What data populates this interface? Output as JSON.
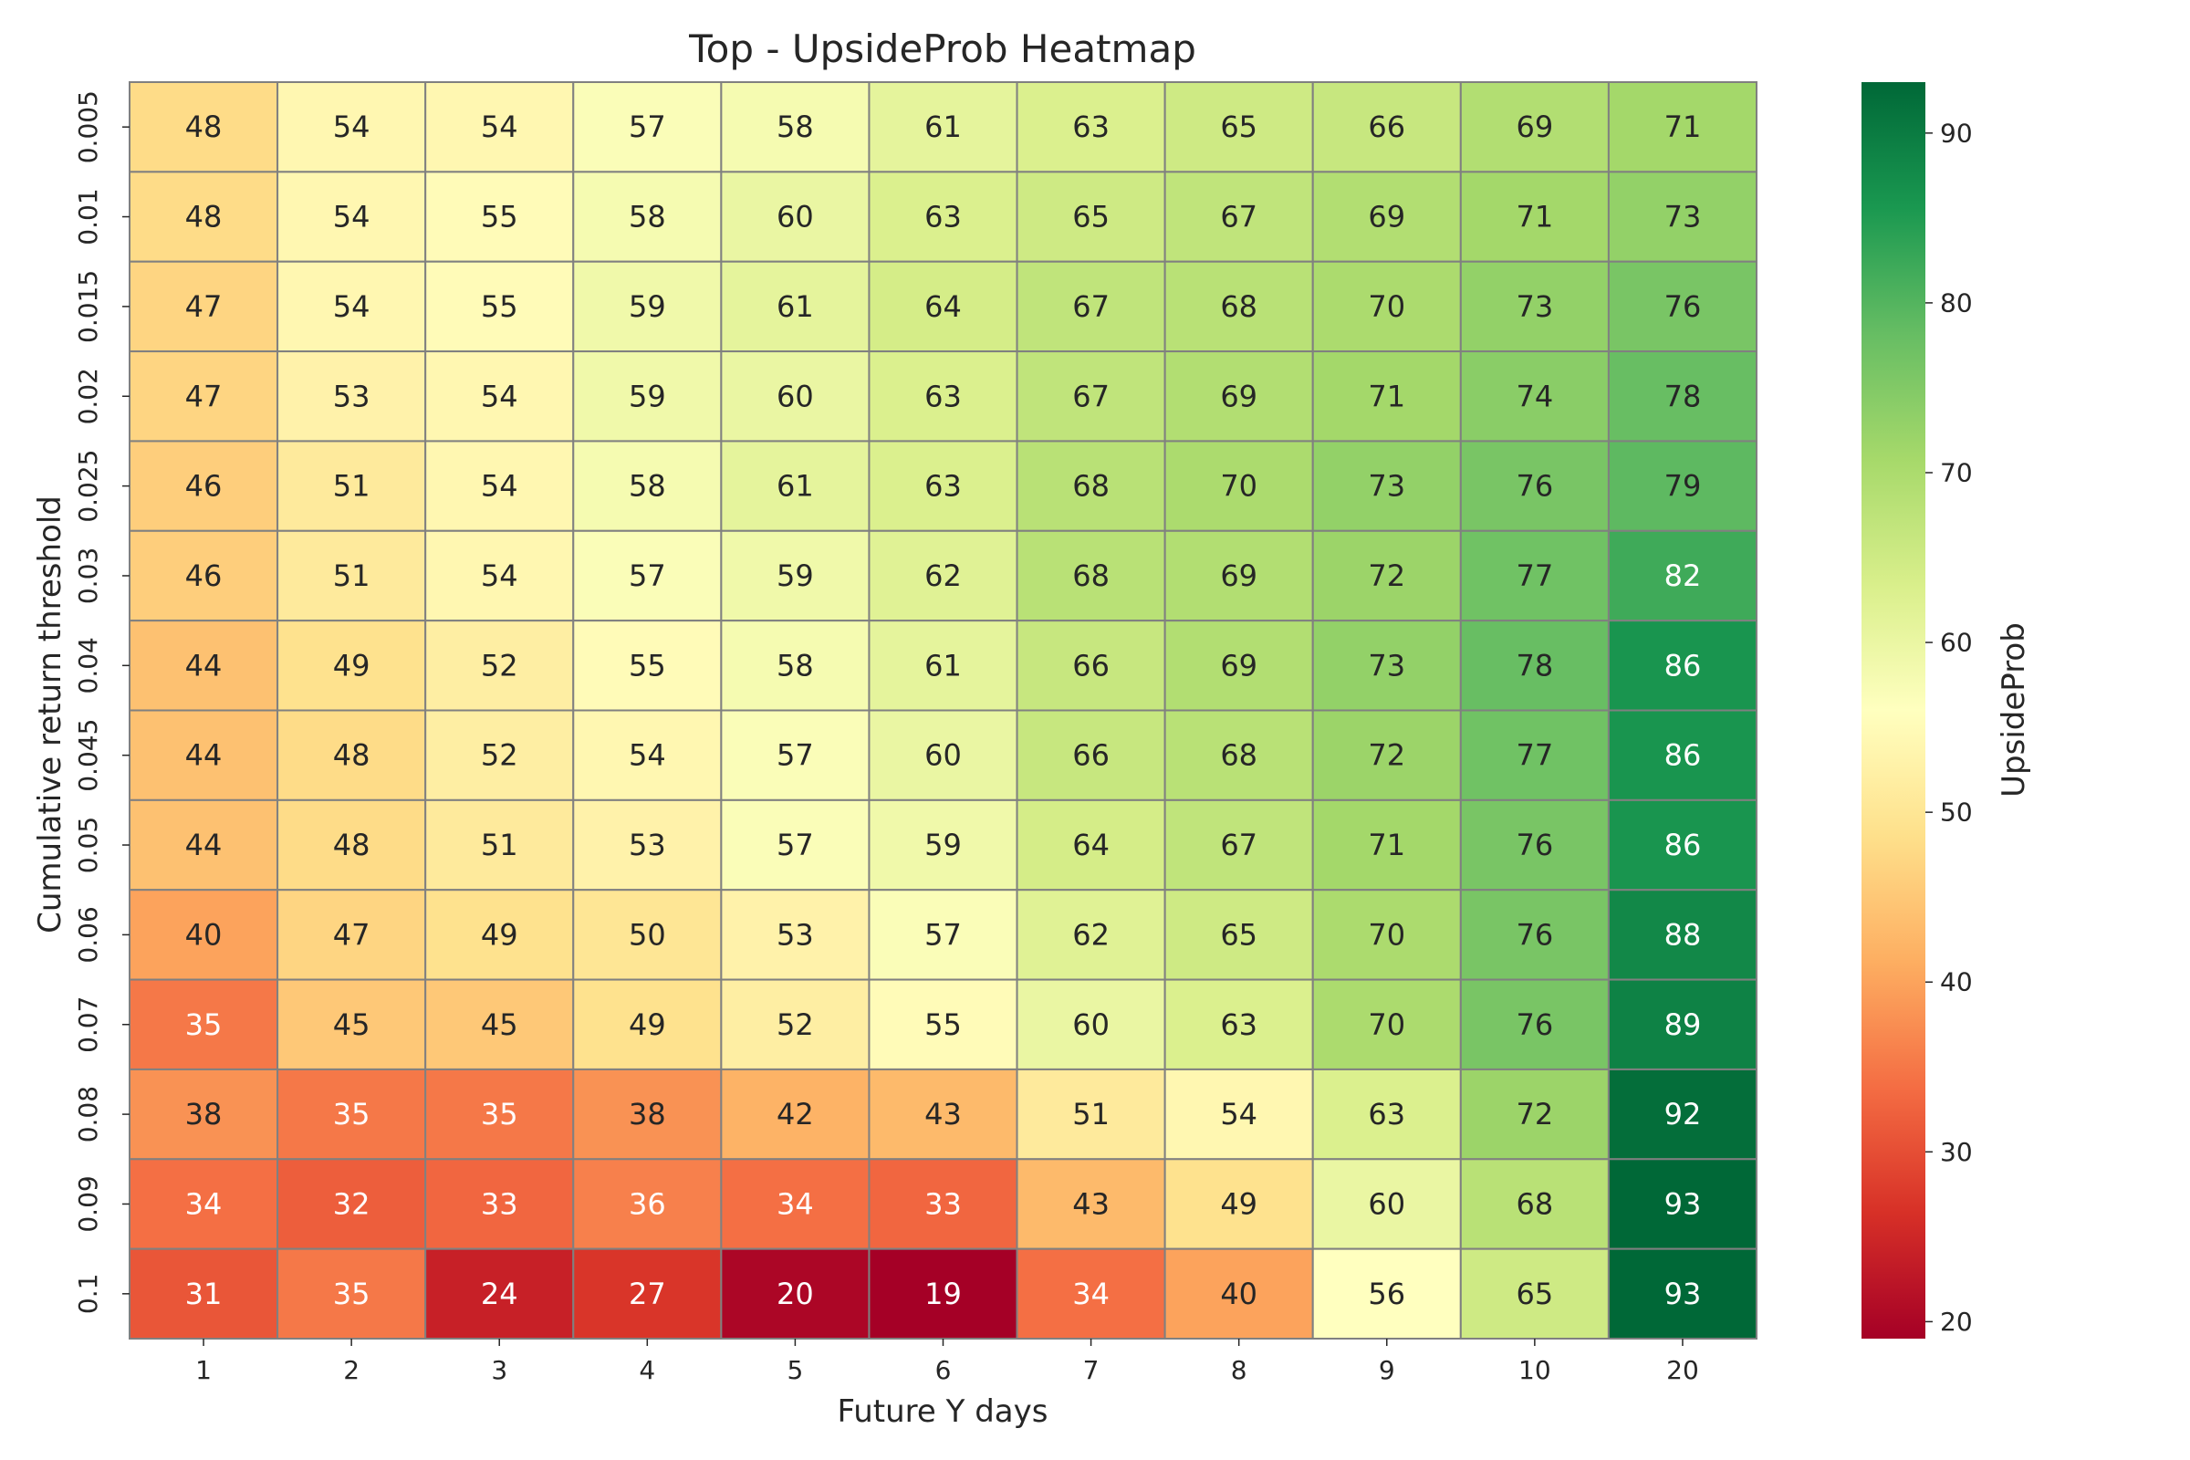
{
  "chart_data": {
    "type": "heatmap",
    "title": "Top - UpsideProb Heatmap",
    "xlabel": "Future Y days",
    "ylabel": "Cumulative return threshold",
    "x_categories": [
      "1",
      "2",
      "3",
      "4",
      "5",
      "6",
      "7",
      "8",
      "9",
      "10",
      "20"
    ],
    "y_categories": [
      "0.005",
      "0.01",
      "0.015",
      "0.02",
      "0.025",
      "0.03",
      "0.04",
      "0.045",
      "0.05",
      "0.06",
      "0.07",
      "0.08",
      "0.09",
      "0.1"
    ],
    "values": [
      [
        48,
        54,
        54,
        57,
        58,
        61,
        63,
        65,
        66,
        69,
        71
      ],
      [
        48,
        54,
        55,
        58,
        60,
        63,
        65,
        67,
        69,
        71,
        73
      ],
      [
        47,
        54,
        55,
        59,
        61,
        64,
        67,
        68,
        70,
        73,
        76
      ],
      [
        47,
        53,
        54,
        59,
        60,
        63,
        67,
        69,
        71,
        74,
        78
      ],
      [
        46,
        51,
        54,
        58,
        61,
        63,
        68,
        70,
        73,
        76,
        79
      ],
      [
        46,
        51,
        54,
        57,
        59,
        62,
        68,
        69,
        72,
        77,
        82
      ],
      [
        44,
        49,
        52,
        55,
        58,
        61,
        66,
        69,
        73,
        78,
        86
      ],
      [
        44,
        48,
        52,
        54,
        57,
        60,
        66,
        68,
        72,
        77,
        86
      ],
      [
        44,
        48,
        51,
        53,
        57,
        59,
        64,
        67,
        71,
        76,
        86
      ],
      [
        40,
        47,
        49,
        50,
        53,
        57,
        62,
        65,
        70,
        76,
        88
      ],
      [
        35,
        45,
        45,
        49,
        52,
        55,
        60,
        63,
        70,
        76,
        89
      ],
      [
        38,
        35,
        35,
        38,
        42,
        43,
        51,
        54,
        63,
        72,
        92
      ],
      [
        34,
        32,
        33,
        36,
        34,
        33,
        43,
        49,
        60,
        68,
        93
      ],
      [
        31,
        35,
        24,
        27,
        20,
        19,
        34,
        40,
        56,
        65,
        93
      ]
    ],
    "vmin": 19,
    "vmax": 93,
    "colormap": "RdYlGn",
    "colorbar_label": "UpsideProb",
    "colorbar_ticks": [
      20,
      30,
      40,
      50,
      60,
      70,
      80,
      90
    ],
    "cell_border_color": "#808080",
    "annotated": true
  }
}
